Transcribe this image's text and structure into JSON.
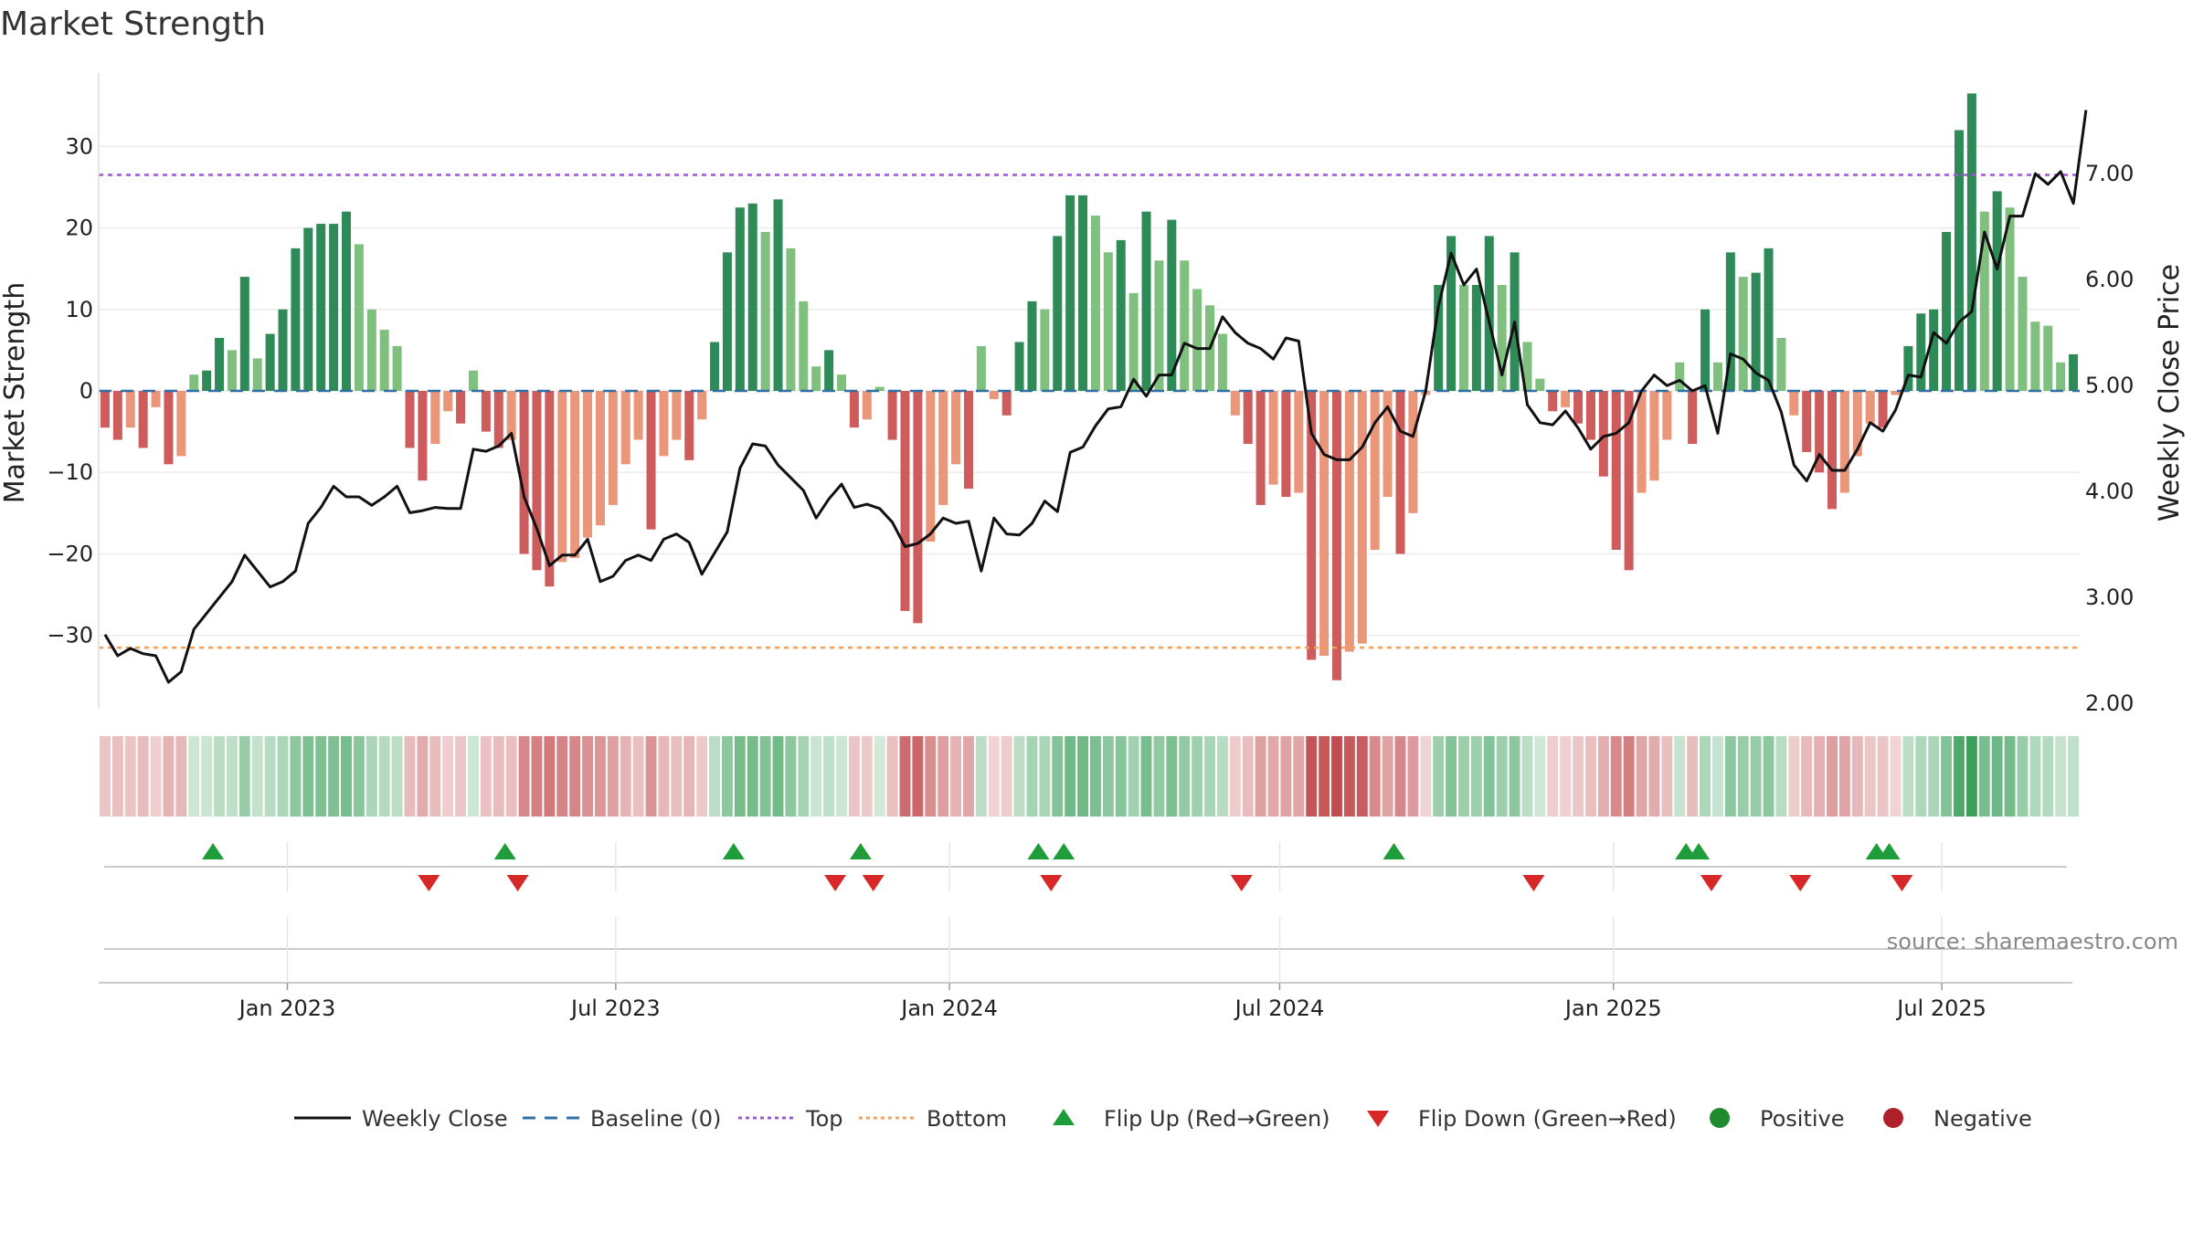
{
  "chart_data": {
    "type": "bar+line",
    "title": "Market Strength",
    "source": "source: sharemaestro.com",
    "ylabel_left": "Market Strength",
    "ylabel_right": "Weekly Close Price",
    "ylim_left": [
      -39,
      39
    ],
    "ylim_right": [
      1.95,
      7.95
    ],
    "yticks_left": [
      30,
      20,
      10,
      0,
      -10,
      -20,
      -30
    ],
    "yticks_left_labels": [
      "30",
      "20",
      "10",
      "0",
      "−10",
      "−20",
      "−30"
    ],
    "yticks_right": [
      7,
      6,
      5,
      4,
      3,
      2
    ],
    "yticks_right_labels": [
      "7.00",
      "6.00",
      "5.00",
      "4.00",
      "3.00",
      "2.00"
    ],
    "x_start": "2022-09-19",
    "x_end": "2025-09-15",
    "x_ticks": [
      {
        "date": "2023-01-01",
        "label": "Jan 2023"
      },
      {
        "date": "2023-07-01",
        "label": "Jul 2023"
      },
      {
        "date": "2024-01-01",
        "label": "Jan 2024"
      },
      {
        "date": "2024-07-01",
        "label": "Jul 2024"
      },
      {
        "date": "2025-01-01",
        "label": "Jan 2025"
      },
      {
        "date": "2025-07-01",
        "label": "Jul 2025"
      }
    ],
    "top_line": 26.5,
    "bottom_line": -31.5,
    "baseline": 0,
    "strength": [
      -4.5,
      -6,
      -4.5,
      -7,
      -2,
      -9,
      -8,
      2,
      2.5,
      6.5,
      5,
      14,
      4,
      7,
      10,
      17.5,
      20,
      20.5,
      20.5,
      22,
      18,
      10,
      7.5,
      5.5,
      -7,
      -11,
      -6.5,
      -2.5,
      -4,
      2.5,
      -5,
      -7,
      -6,
      -20,
      -22,
      -24,
      -21,
      -20.5,
      -18,
      -16.5,
      -14,
      -9,
      -6,
      -17,
      -8,
      -6,
      -8.5,
      -3.5,
      6,
      17,
      22.5,
      23,
      19.5,
      23.5,
      17.5,
      11,
      3,
      5,
      2,
      -4.5,
      -3.5,
      0.5,
      -6,
      -27,
      -28.5,
      -18.5,
      -14,
      -9,
      -12,
      5.5,
      -1,
      -3,
      6,
      11,
      10,
      19,
      24,
      24,
      21.5,
      17,
      18.5,
      12,
      22,
      16,
      21,
      16,
      12.5,
      10.5,
      7,
      -3,
      -6.5,
      -14,
      -11.5,
      -13,
      -12.5,
      -33,
      -32.5,
      -35.5,
      -32,
      -31,
      -19.5,
      -13,
      -20,
      -15,
      -0.5,
      13,
      19,
      13,
      13,
      19,
      13,
      17,
      6,
      1.5,
      -2.5,
      -2,
      -4,
      -6,
      -10.5,
      -19.5,
      -22,
      -12.5,
      -11,
      -6,
      3.5,
      -6.5,
      10,
      3.5,
      17,
      14,
      14.5,
      17.5,
      6.5,
      -3,
      -7.5,
      -10,
      -14.5,
      -12.5,
      -8,
      -4,
      -4.5,
      -0.5,
      5.5,
      9.5,
      10,
      19.5,
      32,
      36.5,
      22,
      24.5,
      22.5,
      14,
      8.5,
      8,
      3.5,
      4.5
    ],
    "close": [
      2.65,
      2.45,
      2.52,
      2.47,
      2.45,
      2.2,
      2.3,
      2.7,
      2.85,
      3,
      3.15,
      3.4,
      3.25,
      3.1,
      3.15,
      3.25,
      3.7,
      3.85,
      4.05,
      3.95,
      3.95,
      3.87,
      3.95,
      4.05,
      3.8,
      3.82,
      3.85,
      3.84,
      3.84,
      4.4,
      4.38,
      4.43,
      4.55,
      3.95,
      3.65,
      3.3,
      3.4,
      3.4,
      3.55,
      3.15,
      3.2,
      3.35,
      3.4,
      3.35,
      3.55,
      3.6,
      3.52,
      3.22,
      3.42,
      3.62,
      4.22,
      4.45,
      4.43,
      4.25,
      4.13,
      4.01,
      3.75,
      3.93,
      4.07,
      3.85,
      3.88,
      3.84,
      3.71,
      3.48,
      3.51,
      3.6,
      3.75,
      3.7,
      3.72,
      3.25,
      3.75,
      3.6,
      3.59,
      3.7,
      3.91,
      3.81,
      4.37,
      4.42,
      4.62,
      4.78,
      4.8,
      5.06,
      4.9,
      5.1,
      5.1,
      5.4,
      5.35,
      5.35,
      5.65,
      5.5,
      5.4,
      5.35,
      5.25,
      5.45,
      5.42,
      4.55,
      4.35,
      4.3,
      4.3,
      4.42,
      4.65,
      4.8,
      4.57,
      4.52,
      4.95,
      5.75,
      6.25,
      5.95,
      6.1,
      5.6,
      5.1,
      5.6,
      4.82,
      4.65,
      4.63,
      4.76,
      4.6,
      4.4,
      4.52,
      4.55,
      4.65,
      4.95,
      5.1,
      5,
      5.05,
      4.95,
      5,
      4.55,
      5.3,
      5.25,
      5.12,
      5.05,
      4.75,
      4.25,
      4.1,
      4.35,
      4.2,
      4.2,
      4.4,
      4.65,
      4.57,
      4.77,
      5.1,
      5.08,
      5.5,
      5.4,
      5.6,
      5.7,
      6.45,
      6.1,
      6.6,
      6.6,
      7,
      6.9,
      7.02,
      6.72,
      7.6
    ],
    "flip_up_dates": [
      "2022-11-21",
      "2023-05-01",
      "2023-09-04",
      "2023-11-13",
      "2024-02-19",
      "2024-03-04",
      "2025-02-10",
      "2025-02-17",
      "2024-09-02",
      "2025-05-26",
      "2025-06-02"
    ],
    "flip_down_dates": [
      "2023-03-20",
      "2023-05-08",
      "2023-10-30",
      "2023-11-20",
      "2024-02-26",
      "2024-06-10",
      "2024-11-18",
      "2025-02-24",
      "2025-04-14",
      "2025-06-09"
    ],
    "legend": [
      {
        "kind": "line",
        "label": "Weekly Close",
        "color": "#111111"
      },
      {
        "kind": "dash",
        "label": "Baseline (0)",
        "color": "#2f6fa5"
      },
      {
        "kind": "dotted",
        "label": "Top",
        "color": "#9b59d0"
      },
      {
        "kind": "dotted",
        "label": "Bottom",
        "color": "#f0a060"
      },
      {
        "kind": "tri-up",
        "label": "Flip Up (Red→Green)",
        "color": "#1f9d3a"
      },
      {
        "kind": "tri-down",
        "label": "Flip Down (Green→Red)",
        "color": "#d62828"
      },
      {
        "kind": "dot",
        "label": "Positive",
        "color": "#1f8a2e"
      },
      {
        "kind": "dot",
        "label": "Negative",
        "color": "#b0202a"
      }
    ],
    "colors": {
      "pos_strong": "#2e8b57",
      "pos_weak": "#7fc07f",
      "neg_strong": "#cd5c5c",
      "neg_weak": "#e9967a",
      "close_line": "#111111",
      "baseline": "#2f6fa5",
      "top": "#9b59d0",
      "bottom": "#f0a060",
      "flip_up": "#1f9d3a",
      "flip_down": "#d62828",
      "grid": "#ececec"
    }
  }
}
